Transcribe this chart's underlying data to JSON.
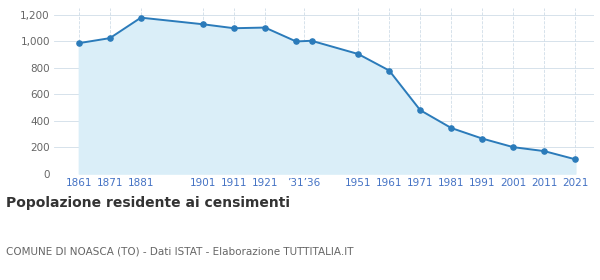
{
  "years": [
    1861,
    1871,
    1881,
    1901,
    1911,
    1921,
    1931,
    1936,
    1951,
    1961,
    1971,
    1981,
    1991,
    2001,
    2011,
    2021
  ],
  "population": [
    987,
    1025,
    1180,
    1130,
    1100,
    1105,
    1000,
    1005,
    905,
    780,
    480,
    345,
    265,
    200,
    170,
    108
  ],
  "tick_positions": [
    1861,
    1871,
    1881,
    1901,
    1911,
    1921,
    1933.5,
    1951,
    1961,
    1971,
    1981,
    1991,
    2001,
    2011,
    2021
  ],
  "tick_labels": [
    "1861",
    "1871",
    "1881",
    "1901",
    "1911",
    "1921",
    "’31’36",
    "1951",
    "1961",
    "1971",
    "1981",
    "1991",
    "2001",
    "2011",
    "2021"
  ],
  "line_color": "#2b7bba",
  "fill_color": "#daeef8",
  "marker_color": "#2b7bba",
  "grid_color": "#d0dde8",
  "background_color": "#ffffff",
  "title": "Popolazione residente ai censimenti",
  "subtitle": "COMUNE DI NOASCA (TO) - Dati ISTAT - Elaborazione TUTTITALIA.IT",
  "ylim": [
    0,
    1250
  ],
  "yticks": [
    0,
    200,
    400,
    600,
    800,
    1000,
    1200
  ],
  "xlim_left": 1853,
  "xlim_right": 2027,
  "xlabel_color": "#4472c4",
  "ytick_color": "#666666",
  "title_fontsize": 10,
  "subtitle_fontsize": 7.5,
  "tick_fontsize": 7.5
}
